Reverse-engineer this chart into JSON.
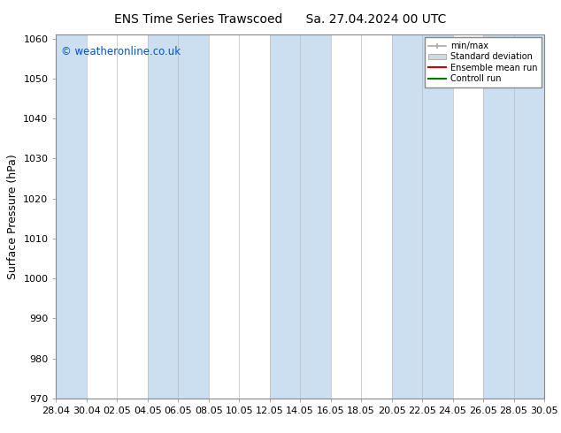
{
  "title_left": "ENS Time Series Trawscoed",
  "title_right": "Sa. 27.04.2024 00 UTC",
  "ylabel": "Surface Pressure (hPa)",
  "ylim": [
    970,
    1061
  ],
  "yticks": [
    970,
    980,
    990,
    1000,
    1010,
    1020,
    1030,
    1040,
    1050,
    1060
  ],
  "xtick_labels": [
    "28.04",
    "30.04",
    "02.05",
    "04.05",
    "06.05",
    "08.05",
    "10.05",
    "12.05",
    "14.05",
    "16.05",
    "18.05",
    "20.05",
    "22.05",
    "24.05",
    "26.05",
    "28.05",
    "30.05"
  ],
  "copyright_text": "© weatheronline.co.uk",
  "copyright_color": "#0055cc",
  "bg_color": "#ffffff",
  "plot_bg_color": "#ffffff",
  "band_color": "#ccdff0",
  "legend_items": [
    "min/max",
    "Standard deviation",
    "Ensemble mean run",
    "Controll run"
  ],
  "legend_line_color": "#aaaaaa",
  "legend_std_color": "#d0d8e0",
  "legend_ens_color": "#cc0000",
  "legend_ctrl_color": "#007700",
  "title_fontsize": 10,
  "tick_fontsize": 8,
  "ylabel_fontsize": 9,
  "band_indices": [
    0,
    3,
    4,
    7,
    8,
    11,
    12,
    14,
    15
  ]
}
